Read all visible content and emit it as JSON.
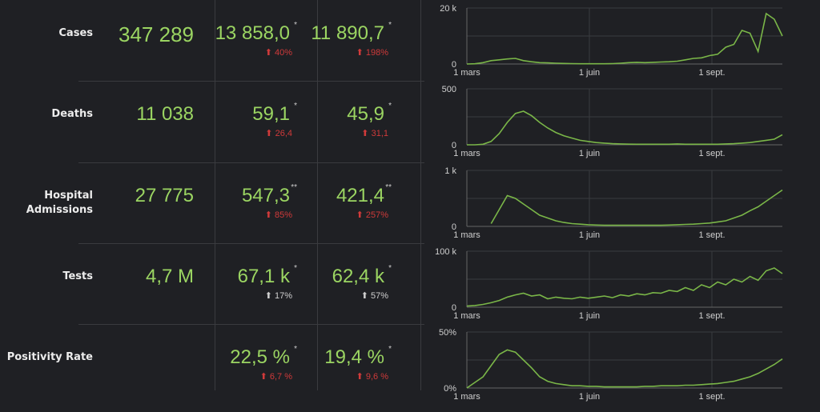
{
  "rows": [
    {
      "label": "Cases",
      "total": "347 289",
      "avg1": "13 858,0",
      "avg1_mark": "*",
      "chg1": "40%",
      "chg1_color": "red",
      "avg2": "11 890,7",
      "avg2_mark": "*",
      "chg2": "198%",
      "chg2_color": "red"
    },
    {
      "label": "Deaths",
      "total": "11 038",
      "avg1": "59,1",
      "avg1_mark": "*",
      "chg1": "26,4",
      "chg1_color": "red",
      "avg2": "45,9",
      "avg2_mark": "*",
      "chg2": "31,1",
      "chg2_color": "red"
    },
    {
      "label": "Hospital Admissions",
      "total": "27 775",
      "avg1": "547,3",
      "avg1_mark": "**",
      "chg1": "85%",
      "chg1_color": "red",
      "avg2": "421,4",
      "avg2_mark": "**",
      "chg2": "257%",
      "chg2_color": "red"
    },
    {
      "label": "Tests",
      "total": "4,7 M",
      "avg1": "67,1 k",
      "avg1_mark": "*",
      "chg1": "17%",
      "chg1_color": "gray",
      "avg2": "62,4 k",
      "avg2_mark": "*",
      "chg2": "57%",
      "chg2_color": "gray"
    },
    {
      "label": "Positivity Rate",
      "total": "",
      "avg1": "22,5 %",
      "avg1_mark": "*",
      "chg1": "6,7 %",
      "chg1_color": "red",
      "avg2": "19,4 %",
      "avg2_mark": "*",
      "chg2": "9,6 %",
      "chg2_color": "red"
    }
  ],
  "arrow_icon": "arrow-up",
  "colors": {
    "value": "#9bd562",
    "line": "#7ab648",
    "up_red": "#d03a3a",
    "bg": "#1f2024"
  },
  "chart_data": [
    {
      "type": "line",
      "title": "Cases",
      "x_step_days": 6,
      "x_ticks": [
        "1 mars",
        "1 juin",
        "1 sept."
      ],
      "y_ticks": [
        "0",
        "20 k"
      ],
      "ylim": [
        0,
        20000
      ],
      "values": [
        0,
        100,
        500,
        1200,
        1500,
        1800,
        2000,
        1200,
        800,
        500,
        400,
        300,
        200,
        150,
        100,
        100,
        100,
        100,
        150,
        300,
        500,
        600,
        500,
        600,
        700,
        800,
        1000,
        1500,
        2000,
        2200,
        3000,
        3500,
        6000,
        7000,
        12000,
        11000,
        4500,
        18000,
        16000,
        10000
      ]
    },
    {
      "type": "line",
      "title": "Deaths",
      "x_step_days": 6,
      "x_ticks": [
        "1 mars",
        "1 juin",
        "1 sept."
      ],
      "y_ticks": [
        "0",
        "500"
      ],
      "ylim": [
        0,
        500
      ],
      "values": [
        0,
        0,
        5,
        30,
        100,
        200,
        280,
        300,
        260,
        200,
        150,
        110,
        80,
        60,
        40,
        30,
        20,
        15,
        10,
        8,
        6,
        5,
        5,
        5,
        5,
        5,
        8,
        5,
        5,
        5,
        5,
        5,
        8,
        10,
        15,
        20,
        30,
        40,
        50,
        90
      ]
    },
    {
      "type": "line",
      "title": "Hospital Admissions",
      "x_step_days": 6,
      "x_ticks": [
        "1 mars",
        "1 juin",
        "1 sept."
      ],
      "y_ticks": [
        "0",
        "1 k"
      ],
      "ylim": [
        0,
        1000
      ],
      "values": [
        null,
        null,
        null,
        50,
        300,
        550,
        500,
        400,
        300,
        200,
        150,
        100,
        70,
        50,
        40,
        30,
        25,
        20,
        20,
        20,
        20,
        20,
        20,
        20,
        20,
        25,
        30,
        35,
        40,
        50,
        60,
        80,
        100,
        150,
        200,
        280,
        350,
        450,
        550,
        650
      ]
    },
    {
      "type": "line",
      "title": "Tests",
      "x_step_days": 6,
      "x_ticks": [
        "1 mars",
        "1 juin",
        "1 sept."
      ],
      "y_ticks": [
        "0",
        "100 k"
      ],
      "ylim": [
        0,
        100000
      ],
      "values": [
        2000,
        3000,
        5000,
        8000,
        12000,
        18000,
        22000,
        25000,
        20000,
        22000,
        15000,
        18000,
        16000,
        15000,
        18000,
        16000,
        18000,
        20000,
        17000,
        22000,
        20000,
        24000,
        22000,
        26000,
        25000,
        30000,
        28000,
        35000,
        30000,
        40000,
        35000,
        45000,
        40000,
        50000,
        45000,
        55000,
        48000,
        65000,
        70000,
        60000
      ]
    },
    {
      "type": "line",
      "title": "Positivity Rate",
      "x_step_days": 6,
      "x_ticks": [
        "1 mars",
        "1 juin",
        "1 sept."
      ],
      "y_ticks": [
        "0%",
        "50%"
      ],
      "ylim": [
        0,
        50
      ],
      "values": [
        0,
        5,
        10,
        20,
        30,
        34,
        32,
        25,
        18,
        10,
        6,
        4,
        3,
        2,
        2,
        1.5,
        1.5,
        1,
        1,
        1,
        1,
        1,
        1.5,
        1.5,
        2,
        2,
        2,
        2.5,
        2.5,
        3,
        3.5,
        4,
        5,
        6,
        8,
        10,
        13,
        17,
        21,
        26
      ]
    }
  ]
}
